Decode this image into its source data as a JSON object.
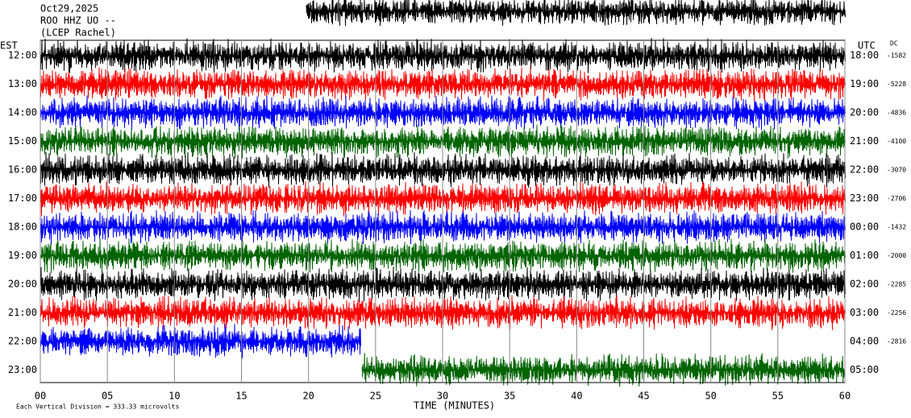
{
  "chart_data": {
    "type": "helicorder",
    "title": "Oct29,2025",
    "subtitle": "ROO HHZ UO --",
    "station": "(LCEP Rachel)",
    "left_label": "EST",
    "right_label": "UTC",
    "dc_label": "DC",
    "xlabel": "TIME (MINUTES)",
    "footer": "Each Vertical Division =  333.33 microvolts",
    "xlim": [
      0,
      60
    ],
    "xticks": [
      {
        "value": 0,
        "label": "00"
      },
      {
        "value": 5,
        "label": "05"
      },
      {
        "value": 10,
        "label": "10"
      },
      {
        "value": 15,
        "label": "15"
      },
      {
        "value": 20,
        "label": "20"
      },
      {
        "value": 25,
        "label": "25"
      },
      {
        "value": 30,
        "label": "30"
      },
      {
        "value": 35,
        "label": "35"
      },
      {
        "value": 40,
        "label": "40"
      },
      {
        "value": 45,
        "label": "45"
      },
      {
        "value": 50,
        "label": "50"
      },
      {
        "value": 55,
        "label": "55"
      },
      {
        "value": 60,
        "label": "60"
      }
    ],
    "rows": [
      {
        "est": "12:00",
        "utc": "18:00",
        "dc": -1582,
        "color": "#000000"
      },
      {
        "est": "13:00",
        "utc": "19:00",
        "dc": -5228,
        "color": "#ff0000"
      },
      {
        "est": "14:00",
        "utc": "20:00",
        "dc": -4836,
        "color": "#0000ff"
      },
      {
        "est": "15:00",
        "utc": "21:00",
        "dc": -4100,
        "color": "#006400"
      },
      {
        "est": "16:00",
        "utc": "22:00",
        "dc": -3070,
        "color": "#000000"
      },
      {
        "est": "17:00",
        "utc": "23:00",
        "dc": -2706,
        "color": "#ff0000"
      },
      {
        "est": "18:00",
        "utc": "00:00",
        "dc": -1432,
        "color": "#0000ff"
      },
      {
        "est": "19:00",
        "utc": "01:00",
        "dc": -2000,
        "color": "#006400"
      },
      {
        "est": "20:00",
        "utc": "02:00",
        "dc": -2285,
        "color": "#000000"
      },
      {
        "est": "21:00",
        "utc": "03:00",
        "dc": -2256,
        "color": "#ff0000"
      },
      {
        "est": "22:00",
        "utc": "04:00",
        "dc": -2816,
        "color": "#0000ff"
      },
      {
        "est": "23:00",
        "utc": "05:00",
        "dc": null,
        "color": "#006400"
      }
    ]
  }
}
